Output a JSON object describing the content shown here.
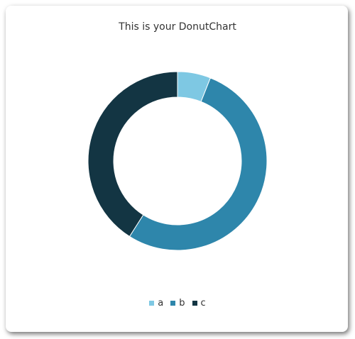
{
  "chart_data": {
    "type": "pie",
    "variant": "donut",
    "title": "This is your DonutChart",
    "categories": [
      "a",
      "b",
      "c"
    ],
    "values": [
      6,
      53,
      41
    ],
    "colors": [
      "#7ec8e3",
      "#2e86ab",
      "#133543"
    ],
    "legend_position": "bottom"
  }
}
